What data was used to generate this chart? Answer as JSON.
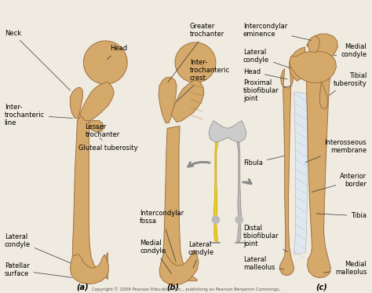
{
  "background_color": "#f0ebe0",
  "bone_color": "#d4a96a",
  "bone_highlight": "#e8c98a",
  "bone_shadow": "#b8864e",
  "bone_edge_color": "#a07040",
  "membrane_color": "#dde8f0",
  "text_color": "#000000",
  "label_fontsize": 6.0,
  "bold_label_fontsize": 6.5,
  "copyright": "Copyright © 2009 Pearson Education, Inc., publishing as Pearson Benjamin Cummings.",
  "section_a": "(a)",
  "section_b": "(b)",
  "section_c": "(c)"
}
